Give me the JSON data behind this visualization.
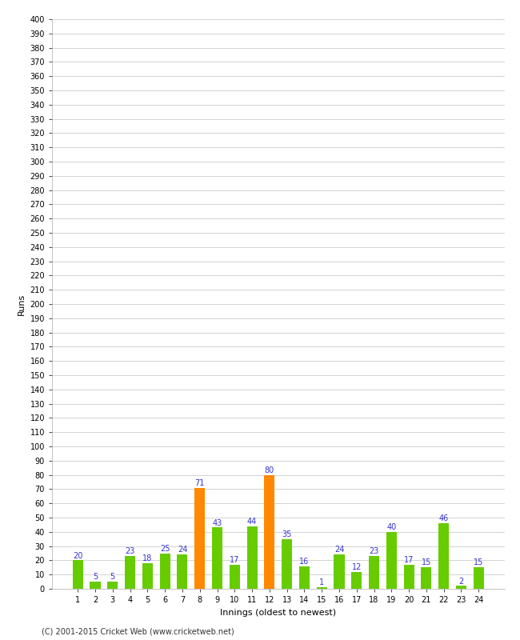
{
  "xlabel": "Innings (oldest to newest)",
  "ylabel": "Runs",
  "categories": [
    1,
    2,
    3,
    4,
    5,
    6,
    7,
    8,
    9,
    10,
    11,
    12,
    13,
    14,
    15,
    16,
    17,
    18,
    19,
    20,
    21,
    22,
    23,
    24
  ],
  "values": [
    20,
    5,
    5,
    23,
    18,
    25,
    24,
    71,
    43,
    17,
    44,
    80,
    35,
    16,
    1,
    24,
    12,
    23,
    40,
    17,
    15,
    46,
    2,
    15
  ],
  "bar_colors": [
    "#66cc00",
    "#66cc00",
    "#66cc00",
    "#66cc00",
    "#66cc00",
    "#66cc00",
    "#66cc00",
    "#ff8800",
    "#66cc00",
    "#66cc00",
    "#66cc00",
    "#ff8800",
    "#66cc00",
    "#66cc00",
    "#66cc00",
    "#66cc00",
    "#66cc00",
    "#66cc00",
    "#66cc00",
    "#66cc00",
    "#66cc00",
    "#66cc00",
    "#66cc00",
    "#66cc00"
  ],
  "ylim": [
    0,
    400
  ],
  "yticks": [
    0,
    10,
    20,
    30,
    40,
    50,
    60,
    70,
    80,
    90,
    100,
    110,
    120,
    130,
    140,
    150,
    160,
    170,
    180,
    190,
    200,
    210,
    220,
    230,
    240,
    250,
    260,
    270,
    280,
    290,
    300,
    310,
    320,
    330,
    340,
    350,
    360,
    370,
    380,
    390,
    400
  ],
  "label_color": "#3333cc",
  "grid_color": "#cccccc",
  "background_color": "#ffffff",
  "footer": "(C) 2001-2015 Cricket Web (www.cricketweb.net)",
  "axis_label_fontsize": 8,
  "tick_fontsize": 7,
  "bar_label_fontsize": 7,
  "footer_fontsize": 7,
  "bar_width": 0.6
}
